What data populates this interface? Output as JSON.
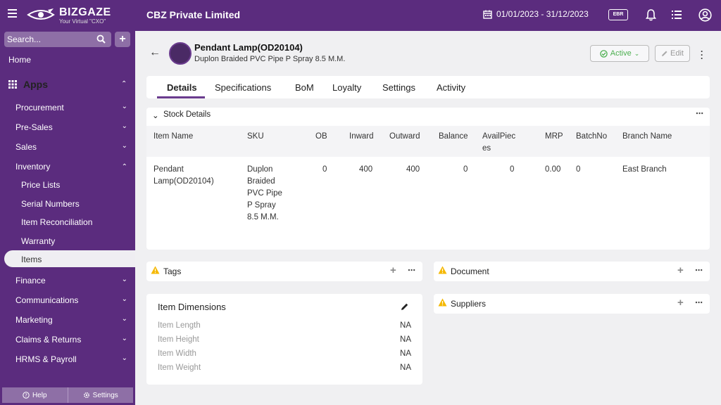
{
  "app": {
    "brand_name": "BIZGAZE",
    "brand_tagline": "Your Virtual \"CXO\"",
    "company": "CBZ Private Limited",
    "date_range": "01/01/2023 - 31/12/2023",
    "ebr_label": "EBR"
  },
  "sidebar": {
    "search_placeholder": "Search...",
    "home": "Home",
    "apps": "Apps",
    "sections": [
      {
        "label": "Procurement"
      },
      {
        "label": "Pre-Sales"
      },
      {
        "label": "Sales"
      },
      {
        "label": "Inventory"
      }
    ],
    "inventory_items": [
      {
        "label": "Price Lists"
      },
      {
        "label": "Serial Numbers"
      },
      {
        "label": "Item Reconciliation"
      },
      {
        "label": "Warranty"
      },
      {
        "label": "Items"
      }
    ],
    "sections_after": [
      {
        "label": "Finance"
      },
      {
        "label": "Communications"
      },
      {
        "label": "Marketing"
      },
      {
        "label": "Claims & Returns"
      },
      {
        "label": "HRMS & Payroll"
      }
    ],
    "help": "Help",
    "settings": "Settings"
  },
  "header": {
    "title": "Pendant Lamp(OD20104)",
    "subtitle": "Duplon Braided PVC Pipe P Spray 8.5 M.M.",
    "status": "Active",
    "edit": "Edit"
  },
  "tabs": [
    {
      "label": "Details"
    },
    {
      "label": "Specifications"
    },
    {
      "label": "BoM"
    },
    {
      "label": "Loyalty"
    },
    {
      "label": "Settings"
    },
    {
      "label": "Activity"
    }
  ],
  "stock": {
    "title": "Stock Details",
    "columns": [
      "Item Name",
      "SKU",
      "OB",
      "Inward",
      "Outward",
      "Balance",
      "AvailPieces",
      "MRP",
      "BatchNo",
      "Branch Name"
    ],
    "row": {
      "item_name": "Pendant Lamp(OD20104)",
      "sku": "Duplon Braided PVC Pipe P Spray 8.5 M.M.",
      "ob": "0",
      "inward": "400",
      "outward": "400",
      "balance": "0",
      "avail_pieces": "0",
      "mrp": "0.00",
      "batch_no": "0",
      "branch_name": "East Branch"
    }
  },
  "tags": {
    "title": "Tags"
  },
  "document": {
    "title": "Document"
  },
  "suppliers": {
    "title": "Suppliers"
  },
  "dimensions": {
    "title": "Item Dimensions",
    "rows": [
      {
        "label": "Item Length",
        "value": "NA"
      },
      {
        "label": "Item Height",
        "value": "NA"
      },
      {
        "label": "Item Width",
        "value": "NA"
      },
      {
        "label": "Item Weight",
        "value": "NA"
      }
    ]
  },
  "colors": {
    "brand_purple": "#5b2c7e",
    "sidebar_highlight": "#8e6fa6",
    "active_status": "#4caf50",
    "warning": "#f5b800"
  }
}
